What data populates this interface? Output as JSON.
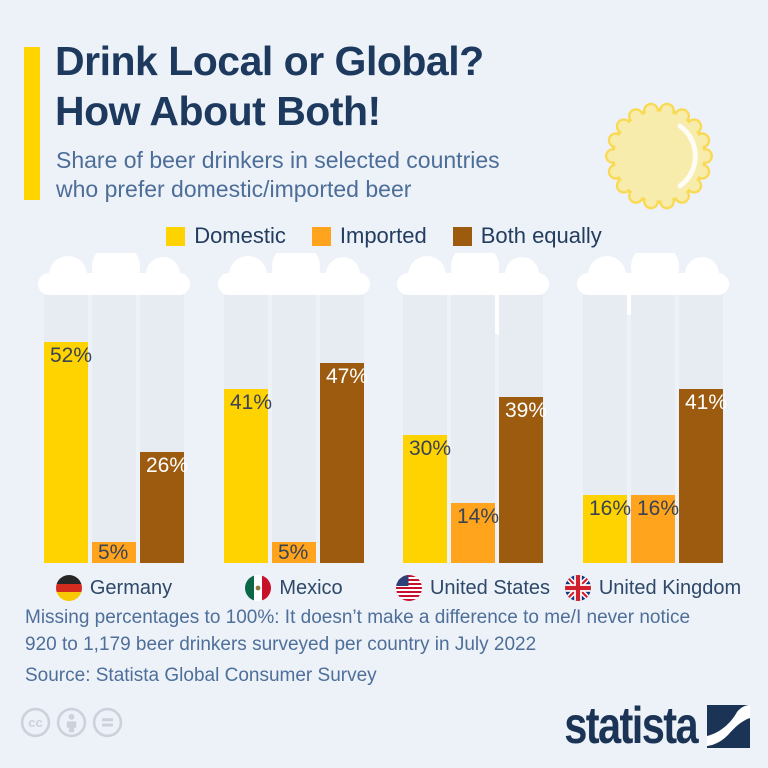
{
  "page": {
    "background_color": "#edf1f8",
    "accent_color": "#ffd400"
  },
  "header": {
    "title_line1": "Drink Local or Global?",
    "title_line2": "How About Both!",
    "subtitle_line1": "Share of beer drinkers in selected countries",
    "subtitle_line2": "who prefer domestic/imported beer",
    "title_color": "#1d3a5e",
    "subtitle_color": "#4c6e98",
    "decoration": "bottle-cap"
  },
  "legend": {
    "items": [
      {
        "label": "Domestic",
        "color": "#ffd300"
      },
      {
        "label": "Imported",
        "color": "#ffa41c"
      },
      {
        "label": "Both equally",
        "color": "#9c5b0f"
      }
    ]
  },
  "chart_data": {
    "type": "bar",
    "title": "Share of beer drinkers in selected countries who prefer domestic/imported beer",
    "unit": "%",
    "categories": [
      "Germany",
      "Mexico",
      "United States",
      "United Kingdom"
    ],
    "category_flags": [
      "germany",
      "mexico",
      "united-states",
      "united-kingdom"
    ],
    "series": [
      {
        "name": "Domestic",
        "color": "#ffd300",
        "values": [
          52,
          41,
          30,
          16
        ]
      },
      {
        "name": "Imported",
        "color": "#ffa41c",
        "values": [
          5,
          5,
          14,
          16
        ]
      },
      {
        "name": "Both equally",
        "color": "#9c5b0f",
        "values": [
          26,
          47,
          39,
          41
        ]
      }
    ],
    "value_labels": [
      [
        "52%",
        "41%",
        "30%",
        "16%"
      ],
      [
        "5%",
        "5%",
        "14%",
        "16%"
      ],
      [
        "26%",
        "47%",
        "39%",
        "41%"
      ]
    ],
    "ylim": [
      0,
      63
    ],
    "gridlines": false,
    "legend_position": "top",
    "bar_background_color": "#e7ebf2",
    "foam_color": "#ffffff"
  },
  "footer": {
    "note_line1": "Missing percentages to 100%: It doesn’t make a difference to me/I never notice",
    "note_line2": "920 to 1,179 beer drinkers surveyed per country in July 2022",
    "source": "Source: Statista Global Consumer Survey",
    "text_color": "#4e6f99"
  },
  "branding": {
    "logo_text": "statista",
    "logo_color": "#1b3456",
    "license_icons": [
      "cc",
      "attribution",
      "equal"
    ]
  }
}
